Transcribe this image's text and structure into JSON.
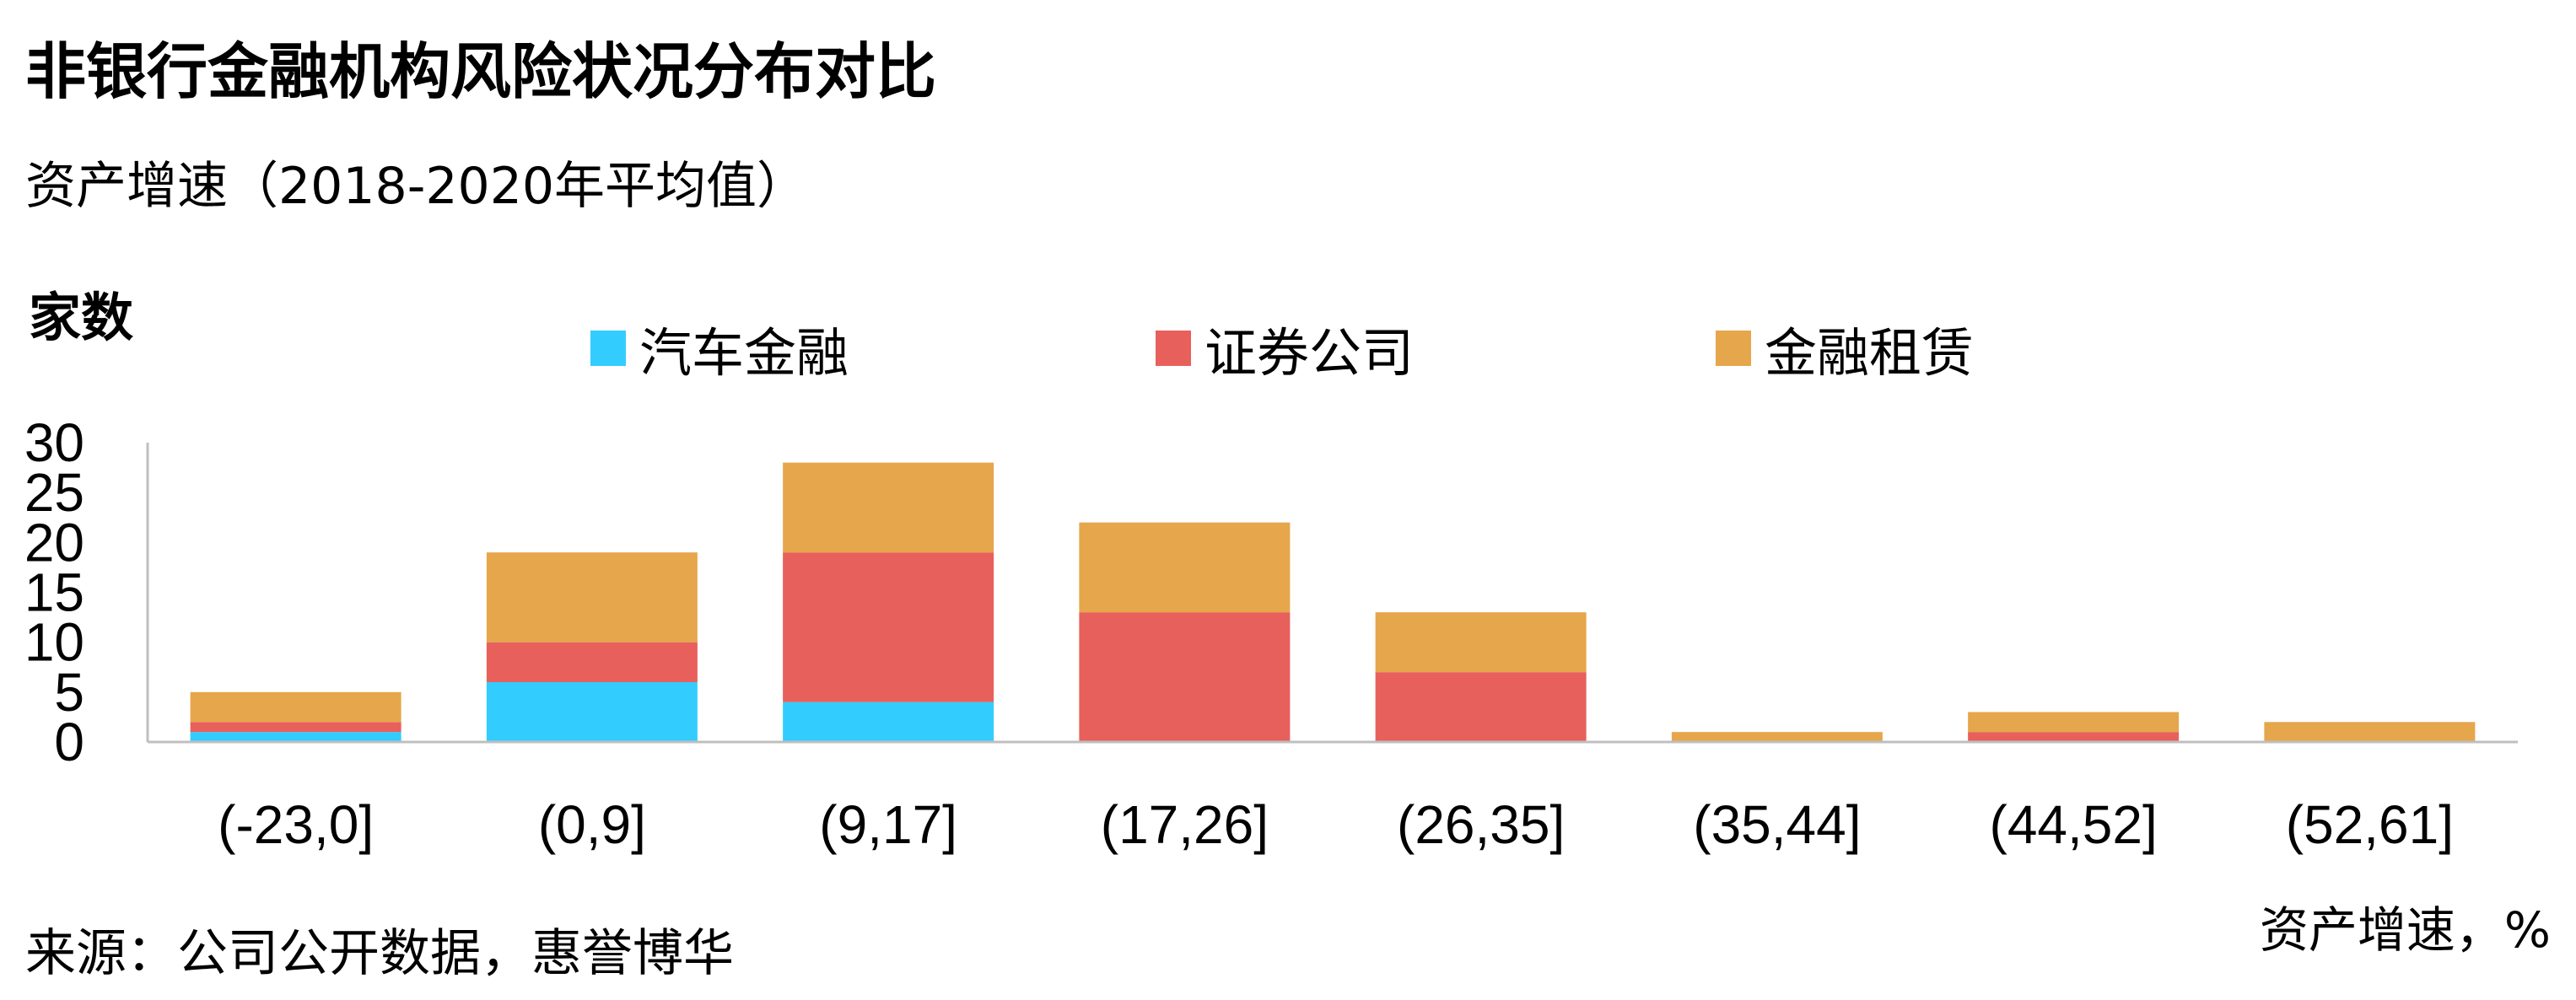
{
  "title": "非银行金融机构风险状况分布对比",
  "subtitle": "资产增速（2018-2020年平均值）",
  "source": "来源：公司公开数据，惠誉博华",
  "chart_data": {
    "type": "bar",
    "stacked": true,
    "ylabel": "家数",
    "xlabel": "资产增速，%",
    "ylim": [
      0,
      30
    ],
    "yticks": [
      "0",
      "5",
      "10",
      "15",
      "20",
      "25",
      "30"
    ],
    "grid": false,
    "legend_position": "top",
    "categories": [
      "(-23,0]",
      "(0,9]",
      "(9,17]",
      "(17,26]",
      "(26,35]",
      "(35,44]",
      "(44,52]",
      "(52,61]"
    ],
    "series": [
      {
        "name": "汽车金融",
        "color": "#33ccff",
        "values": [
          1,
          6,
          4,
          0,
          0,
          0,
          0,
          0
        ]
      },
      {
        "name": "证券公司",
        "color": "#e8605c",
        "values": [
          1,
          4,
          15,
          13,
          7,
          0,
          1,
          0
        ]
      },
      {
        "name": "金融租赁",
        "color": "#e6a64c",
        "values": [
          3,
          9,
          9,
          9,
          6,
          1,
          2,
          2
        ]
      }
    ]
  }
}
